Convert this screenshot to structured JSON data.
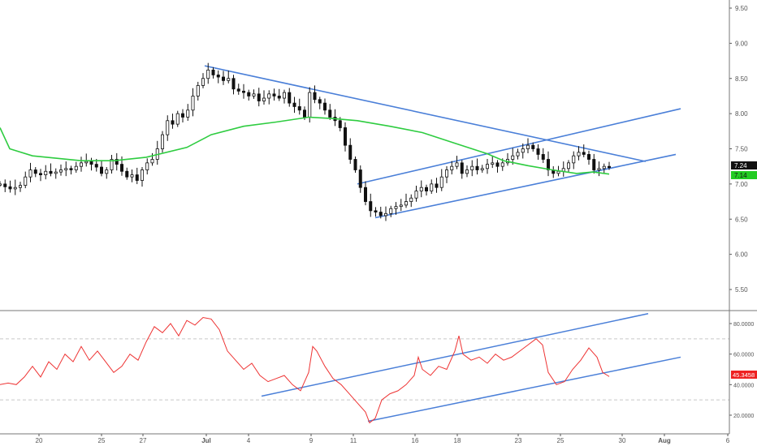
{
  "colors": {
    "background": "#ffffff",
    "candle": "#111111",
    "moving_average": "#2ecc40",
    "trendline": "#4a7fd8",
    "rsi": "#ee3333",
    "grid_dash": "#c8c8c8",
    "axis": "#555555",
    "tick_text": "#555555",
    "last_price_badge": "#111111",
    "ma_badge": "#22cc22",
    "rsi_badge": "#ee2222"
  },
  "chart_data": [
    {
      "type": "candlestick",
      "panel": "price",
      "ylim": [
        5.2,
        9.6
      ],
      "y_ticks": [
        "5.50",
        "6.00",
        "6.50",
        "7.00",
        "7.50",
        "8.00",
        "8.50",
        "9.00",
        "9.50"
      ],
      "x_tick_labels": [
        "20",
        "25",
        "27",
        "Jul",
        "4",
        "9",
        "11",
        "16",
        "18",
        "23",
        "25",
        "30",
        "Aug",
        "6"
      ],
      "last_price_label": "7.24",
      "moving_average_label": "7.14",
      "close_series": [
        7.0,
        6.96,
        6.93,
        6.95,
        6.98,
        7.1,
        7.2,
        7.15,
        7.13,
        7.18,
        7.15,
        7.17,
        7.2,
        7.22,
        7.2,
        7.25,
        7.3,
        7.32,
        7.28,
        7.24,
        7.15,
        7.2,
        7.35,
        7.28,
        7.18,
        7.1,
        7.13,
        7.05,
        7.2,
        7.3,
        7.35,
        7.5,
        7.7,
        7.9,
        7.85,
        8.0,
        7.95,
        8.05,
        8.25,
        8.4,
        8.5,
        8.62,
        8.55,
        8.52,
        8.47,
        8.5,
        8.35,
        8.32,
        8.3,
        8.25,
        8.28,
        8.18,
        8.22,
        8.28,
        8.25,
        8.22,
        8.3,
        8.15,
        8.1,
        8.05,
        7.95,
        8.3,
        8.2,
        8.15,
        8.05,
        7.95,
        7.9,
        7.8,
        7.55,
        7.35,
        7.2,
        6.95,
        6.75,
        6.62,
        6.6,
        6.55,
        6.58,
        6.65,
        6.68,
        6.7,
        6.75,
        6.8,
        6.9,
        6.95,
        6.9,
        7.0,
        6.95,
        7.1,
        7.2,
        7.25,
        7.3,
        7.15,
        7.2,
        7.25,
        7.2,
        7.22,
        7.28,
        7.3,
        7.25,
        7.3,
        7.35,
        7.4,
        7.45,
        7.5,
        7.55,
        7.5,
        7.42,
        7.35,
        7.2,
        7.15,
        7.18,
        7.22,
        7.3,
        7.4,
        7.45,
        7.42,
        7.35,
        7.2,
        7.22,
        7.25,
        7.24
      ],
      "moving_average": [
        [
          0,
          7.8
        ],
        [
          12,
          7.5
        ],
        [
          40,
          7.4
        ],
        [
          100,
          7.33
        ],
        [
          140,
          7.33
        ],
        [
          180,
          7.38
        ],
        [
          230,
          7.52
        ],
        [
          260,
          7.7
        ],
        [
          300,
          7.82
        ],
        [
          340,
          7.88
        ],
        [
          380,
          7.95
        ],
        [
          410,
          7.93
        ],
        [
          440,
          7.9
        ],
        [
          480,
          7.82
        ],
        [
          520,
          7.73
        ],
        [
          560,
          7.58
        ],
        [
          600,
          7.43
        ],
        [
          620,
          7.33
        ],
        [
          650,
          7.26
        ],
        [
          680,
          7.2
        ],
        [
          710,
          7.15
        ],
        [
          730,
          7.17
        ],
        [
          750,
          7.14
        ]
      ],
      "trendlines": [
        {
          "from": [
            252,
            8.68
          ],
          "to": [
            795,
            7.32
          ]
        },
        {
          "from": [
            440,
            7.0
          ],
          "to": [
            838,
            8.07
          ]
        },
        {
          "from": [
            462,
            6.52
          ],
          "to": [
            832,
            7.42
          ]
        }
      ]
    },
    {
      "type": "line",
      "panel": "rsi",
      "ylim": [
        10,
        90
      ],
      "y_ticks": [
        "20.0000",
        "40.0000",
        "60.0000",
        "80.0000"
      ],
      "reference_lines": [
        30,
        70
      ],
      "last_value_label": "45.3458",
      "points": [
        [
          0,
          40
        ],
        [
          10,
          41
        ],
        [
          20,
          40
        ],
        [
          30,
          45
        ],
        [
          40,
          52
        ],
        [
          50,
          45
        ],
        [
          60,
          55
        ],
        [
          70,
          50
        ],
        [
          80,
          60
        ],
        [
          90,
          55
        ],
        [
          100,
          65
        ],
        [
          110,
          56
        ],
        [
          120,
          62
        ],
        [
          130,
          55
        ],
        [
          140,
          48
        ],
        [
          150,
          52
        ],
        [
          160,
          60
        ],
        [
          170,
          56
        ],
        [
          180,
          68
        ],
        [
          190,
          78
        ],
        [
          200,
          74
        ],
        [
          210,
          80
        ],
        [
          220,
          72
        ],
        [
          230,
          82
        ],
        [
          240,
          79
        ],
        [
          250,
          84
        ],
        [
          260,
          83
        ],
        [
          270,
          76
        ],
        [
          280,
          62
        ],
        [
          290,
          56
        ],
        [
          300,
          50
        ],
        [
          310,
          54
        ],
        [
          320,
          46
        ],
        [
          330,
          42
        ],
        [
          340,
          44
        ],
        [
          350,
          46
        ],
        [
          360,
          40
        ],
        [
          370,
          36
        ],
        [
          380,
          48
        ],
        [
          385,
          65
        ],
        [
          390,
          62
        ],
        [
          400,
          52
        ],
        [
          410,
          44
        ],
        [
          420,
          40
        ],
        [
          430,
          34
        ],
        [
          440,
          28
        ],
        [
          450,
          22
        ],
        [
          455,
          15
        ],
        [
          462,
          18
        ],
        [
          470,
          30
        ],
        [
          480,
          34
        ],
        [
          490,
          36
        ],
        [
          500,
          40
        ],
        [
          510,
          46
        ],
        [
          515,
          58
        ],
        [
          520,
          50
        ],
        [
          530,
          46
        ],
        [
          540,
          52
        ],
        [
          550,
          50
        ],
        [
          560,
          62
        ],
        [
          565,
          72
        ],
        [
          570,
          60
        ],
        [
          580,
          56
        ],
        [
          590,
          58
        ],
        [
          600,
          54
        ],
        [
          610,
          60
        ],
        [
          620,
          56
        ],
        [
          630,
          58
        ],
        [
          640,
          62
        ],
        [
          650,
          66
        ],
        [
          660,
          70
        ],
        [
          668,
          66
        ],
        [
          675,
          48
        ],
        [
          685,
          40
        ],
        [
          695,
          42
        ],
        [
          705,
          50
        ],
        [
          715,
          56
        ],
        [
          725,
          64
        ],
        [
          735,
          58
        ],
        [
          742,
          48
        ],
        [
          748,
          46
        ],
        [
          750,
          45.35
        ]
      ],
      "trendlines": [
        {
          "from": [
            322,
            32.5
          ],
          "to": [
            798,
            86.5
          ]
        },
        {
          "from": [
            453,
            16.0
          ],
          "to": [
            838,
            58.0
          ]
        }
      ]
    }
  ]
}
